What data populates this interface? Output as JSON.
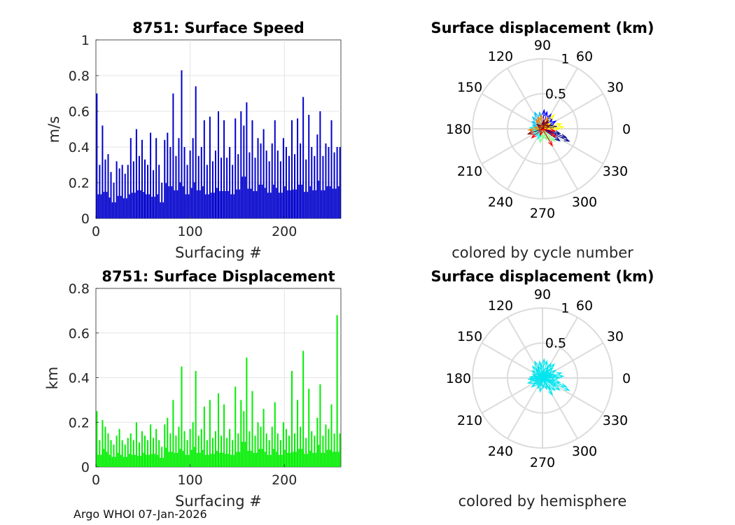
{
  "footer_text": "Argo WHOI 07-Jan-2026",
  "colors": {
    "speed_bars": "#0000cc",
    "displacement_bars": "#00ee00",
    "hemisphere_arrows": "#00e5ee",
    "grid": "#dcdcdc",
    "axis": "#262626"
  },
  "chart_data": [
    {
      "type": "bar",
      "title": "8751: Surface Speed",
      "xlabel": "Surfacing #",
      "ylabel": "m/s",
      "xlim": [
        0,
        260
      ],
      "ylim": [
        0,
        1
      ],
      "xticks": [
        "0",
        "100",
        "200"
      ],
      "xtick_values": [
        0,
        100,
        200
      ],
      "yticks": [
        "0",
        "0.2",
        "0.4",
        "0.6",
        "0.8",
        "1"
      ],
      "ytick_values": [
        0,
        0.2,
        0.4,
        0.6,
        0.8,
        1
      ],
      "grid": true,
      "series": [
        {
          "x": [
            1,
            4,
            7,
            10,
            13,
            16,
            19,
            22,
            25,
            28,
            31,
            34,
            37,
            40,
            43,
            46,
            49,
            52,
            55,
            58,
            61,
            64,
            67,
            70,
            73,
            76,
            79,
            82,
            85,
            88,
            91,
            94,
            97,
            100,
            103,
            106,
            109,
            112,
            115,
            118,
            121,
            124,
            127,
            130,
            133,
            136,
            139,
            142,
            145,
            148,
            151,
            154,
            157,
            160,
            163,
            166,
            169,
            172,
            175,
            178,
            181,
            184,
            187,
            190,
            193,
            196,
            199,
            202,
            205,
            208,
            211,
            214,
            217,
            220,
            223,
            226,
            229,
            232,
            235,
            238,
            241,
            244,
            247,
            250,
            253,
            256,
            259
          ],
          "values": [
            0.7,
            0.3,
            0.52,
            0.33,
            0.36,
            0.26,
            0.2,
            0.32,
            0.28,
            0.3,
            0.25,
            0.3,
            0.45,
            0.32,
            0.5,
            0.35,
            0.44,
            0.33,
            0.3,
            0.48,
            0.27,
            0.45,
            0.3,
            0.2,
            0.44,
            0.48,
            0.4,
            0.7,
            0.35,
            0.45,
            0.83,
            0.4,
            0.3,
            0.38,
            0.45,
            0.74,
            0.35,
            0.4,
            0.55,
            0.3,
            0.57,
            0.32,
            0.38,
            0.6,
            0.34,
            0.55,
            0.34,
            0.4,
            0.3,
            0.56,
            0.36,
            0.6,
            0.52,
            0.65,
            0.37,
            0.55,
            0.34,
            0.45,
            0.42,
            0.5,
            0.38,
            0.32,
            0.42,
            0.55,
            0.38,
            0.32,
            0.45,
            0.4,
            0.35,
            0.55,
            0.36,
            0.56,
            0.42,
            0.68,
            0.33,
            0.58,
            0.4,
            0.35,
            0.47,
            0.6,
            0.35,
            0.42,
            0.4,
            0.55,
            0.37,
            0.4,
            0.4
          ]
        }
      ]
    },
    {
      "type": "bar",
      "title": "8751: Surface Displacement",
      "xlabel": "Surfacing #",
      "ylabel": "km",
      "xlim": [
        0,
        260
      ],
      "ylim": [
        0,
        0.8
      ],
      "xticks": [
        "0",
        "100",
        "200"
      ],
      "xtick_values": [
        0,
        100,
        200
      ],
      "yticks": [
        "0",
        "0.2",
        "0.4",
        "0.6",
        "0.8"
      ],
      "ytick_values": [
        0,
        0.2,
        0.4,
        0.6,
        0.8
      ],
      "grid": true,
      "series": [
        {
          "x": [
            1,
            4,
            7,
            10,
            13,
            16,
            19,
            22,
            25,
            28,
            31,
            34,
            37,
            40,
            43,
            46,
            49,
            52,
            55,
            58,
            61,
            64,
            67,
            70,
            73,
            76,
            79,
            82,
            85,
            88,
            91,
            94,
            97,
            100,
            103,
            106,
            109,
            112,
            115,
            118,
            121,
            124,
            127,
            130,
            133,
            136,
            139,
            142,
            145,
            148,
            151,
            154,
            157,
            160,
            163,
            166,
            169,
            172,
            175,
            178,
            181,
            184,
            187,
            190,
            193,
            196,
            199,
            202,
            205,
            208,
            211,
            214,
            217,
            220,
            223,
            226,
            229,
            232,
            235,
            238,
            241,
            244,
            247,
            250,
            253,
            256,
            259
          ],
          "values": [
            0.25,
            0.12,
            0.21,
            0.18,
            0.15,
            0.12,
            0.1,
            0.14,
            0.17,
            0.12,
            0.1,
            0.13,
            0.15,
            0.12,
            0.2,
            0.11,
            0.16,
            0.14,
            0.12,
            0.19,
            0.13,
            0.17,
            0.12,
            0.09,
            0.19,
            0.22,
            0.15,
            0.3,
            0.14,
            0.18,
            0.45,
            0.16,
            0.12,
            0.17,
            0.2,
            0.43,
            0.14,
            0.17,
            0.27,
            0.12,
            0.3,
            0.13,
            0.16,
            0.33,
            0.14,
            0.28,
            0.13,
            0.17,
            0.12,
            0.36,
            0.15,
            0.3,
            0.25,
            0.49,
            0.16,
            0.34,
            0.14,
            0.2,
            0.18,
            0.26,
            0.15,
            0.12,
            0.18,
            0.29,
            0.15,
            0.12,
            0.2,
            0.17,
            0.14,
            0.43,
            0.15,
            0.3,
            0.18,
            0.52,
            0.13,
            0.35,
            0.16,
            0.14,
            0.22,
            0.37,
            0.14,
            0.19,
            0.17,
            0.28,
            0.15,
            0.68,
            0.15
          ]
        }
      ]
    },
    {
      "type": "polar-compass",
      "title": "Surface displacement (km)",
      "caption": "colored by cycle number",
      "rlim": [
        0,
        1
      ],
      "rticks": [
        "0.5",
        "1"
      ],
      "rtick_values": [
        0.5,
        1
      ],
      "theta_ticks": [
        "0",
        "30",
        "60",
        "90",
        "120",
        "150",
        "180",
        "210",
        "240",
        "270",
        "300",
        "330"
      ],
      "theta_tick_values": [
        0,
        30,
        60,
        90,
        120,
        150,
        180,
        210,
        240,
        270,
        300,
        330
      ],
      "grid": true,
      "color_scale": [
        "#00008b",
        "#0000ff",
        "#00bfff",
        "#00ffff",
        "#7fff7f",
        "#ffff00",
        "#ff8000",
        "#ff0000",
        "#8b0000"
      ],
      "vectors": [
        {
          "angle": 335,
          "r": 0.42
        },
        {
          "angle": 340,
          "r": 0.36
        },
        {
          "angle": 325,
          "r": 0.3
        },
        {
          "angle": 345,
          "r": 0.26
        },
        {
          "angle": 10,
          "r": 0.2
        },
        {
          "angle": 20,
          "r": 0.16
        },
        {
          "angle": 30,
          "r": 0.22
        },
        {
          "angle": 45,
          "r": 0.2
        },
        {
          "angle": 60,
          "r": 0.24
        },
        {
          "angle": 75,
          "r": 0.25
        },
        {
          "angle": 85,
          "r": 0.27
        },
        {
          "angle": 100,
          "r": 0.24
        },
        {
          "angle": 115,
          "r": 0.26
        },
        {
          "angle": 130,
          "r": 0.22
        },
        {
          "angle": 145,
          "r": 0.18
        },
        {
          "angle": 160,
          "r": 0.15
        },
        {
          "angle": 175,
          "r": 0.18
        },
        {
          "angle": 190,
          "r": 0.16
        },
        {
          "angle": 200,
          "r": 0.12
        },
        {
          "angle": 215,
          "r": 0.15
        },
        {
          "angle": 230,
          "r": 0.13
        },
        {
          "angle": 245,
          "r": 0.16
        },
        {
          "angle": 260,
          "r": 0.2
        },
        {
          "angle": 275,
          "r": 0.14
        },
        {
          "angle": 290,
          "r": 0.17
        },
        {
          "angle": 305,
          "r": 0.2
        },
        {
          "angle": 315,
          "r": 0.25
        },
        {
          "angle": 0,
          "r": 0.24
        },
        {
          "angle": 5,
          "r": 0.3
        },
        {
          "angle": 15,
          "r": 0.28
        },
        {
          "angle": 35,
          "r": 0.14
        },
        {
          "angle": 50,
          "r": 0.26
        },
        {
          "angle": 65,
          "r": 0.18
        },
        {
          "angle": 95,
          "r": 0.2
        },
        {
          "angle": 110,
          "r": 0.18
        },
        {
          "angle": 125,
          "r": 0.16
        },
        {
          "angle": 170,
          "r": 0.12
        },
        {
          "angle": 185,
          "r": 0.2
        },
        {
          "angle": 220,
          "r": 0.2
        },
        {
          "angle": 250,
          "r": 0.1
        },
        {
          "angle": 300,
          "r": 0.28
        },
        {
          "angle": 330,
          "r": 0.22
        },
        {
          "angle": 350,
          "r": 0.18
        },
        {
          "angle": 25,
          "r": 0.12
        },
        {
          "angle": 55,
          "r": 0.14
        },
        {
          "angle": 80,
          "r": 0.12
        },
        {
          "angle": 140,
          "r": 0.1
        },
        {
          "angle": 200,
          "r": 0.22
        }
      ]
    },
    {
      "type": "polar-compass",
      "title": "Surface displacement (km)",
      "caption": "colored by hemisphere",
      "rlim": [
        0,
        1
      ],
      "rticks": [
        "0.5",
        "1"
      ],
      "rtick_values": [
        0.5,
        1
      ],
      "theta_ticks": [
        "0",
        "30",
        "60",
        "90",
        "120",
        "150",
        "180",
        "210",
        "240",
        "270",
        "300",
        "330"
      ],
      "theta_tick_values": [
        0,
        30,
        60,
        90,
        120,
        150,
        180,
        210,
        240,
        270,
        300,
        330
      ],
      "grid": true,
      "vectors": [
        {
          "angle": 335,
          "r": 0.42
        },
        {
          "angle": 340,
          "r": 0.36
        },
        {
          "angle": 325,
          "r": 0.3
        },
        {
          "angle": 345,
          "r": 0.26
        },
        {
          "angle": 10,
          "r": 0.2
        },
        {
          "angle": 20,
          "r": 0.16
        },
        {
          "angle": 30,
          "r": 0.22
        },
        {
          "angle": 45,
          "r": 0.2
        },
        {
          "angle": 60,
          "r": 0.24
        },
        {
          "angle": 75,
          "r": 0.25
        },
        {
          "angle": 85,
          "r": 0.27
        },
        {
          "angle": 100,
          "r": 0.24
        },
        {
          "angle": 115,
          "r": 0.26
        },
        {
          "angle": 130,
          "r": 0.22
        },
        {
          "angle": 145,
          "r": 0.18
        },
        {
          "angle": 160,
          "r": 0.15
        },
        {
          "angle": 175,
          "r": 0.18
        },
        {
          "angle": 190,
          "r": 0.16
        },
        {
          "angle": 200,
          "r": 0.12
        },
        {
          "angle": 215,
          "r": 0.15
        },
        {
          "angle": 230,
          "r": 0.13
        },
        {
          "angle": 245,
          "r": 0.16
        },
        {
          "angle": 260,
          "r": 0.2
        },
        {
          "angle": 275,
          "r": 0.14
        },
        {
          "angle": 290,
          "r": 0.17
        },
        {
          "angle": 305,
          "r": 0.2
        },
        {
          "angle": 315,
          "r": 0.25
        },
        {
          "angle": 0,
          "r": 0.24
        },
        {
          "angle": 5,
          "r": 0.3
        },
        {
          "angle": 15,
          "r": 0.28
        },
        {
          "angle": 35,
          "r": 0.14
        },
        {
          "angle": 50,
          "r": 0.26
        },
        {
          "angle": 65,
          "r": 0.18
        },
        {
          "angle": 95,
          "r": 0.2
        },
        {
          "angle": 110,
          "r": 0.18
        },
        {
          "angle": 125,
          "r": 0.16
        },
        {
          "angle": 170,
          "r": 0.12
        },
        {
          "angle": 185,
          "r": 0.2
        },
        {
          "angle": 220,
          "r": 0.2
        },
        {
          "angle": 250,
          "r": 0.1
        },
        {
          "angle": 300,
          "r": 0.28
        },
        {
          "angle": 330,
          "r": 0.22
        },
        {
          "angle": 350,
          "r": 0.18
        },
        {
          "angle": 25,
          "r": 0.12
        },
        {
          "angle": 55,
          "r": 0.14
        },
        {
          "angle": 80,
          "r": 0.12
        },
        {
          "angle": 140,
          "r": 0.1
        },
        {
          "angle": 200,
          "r": 0.22
        }
      ]
    }
  ]
}
